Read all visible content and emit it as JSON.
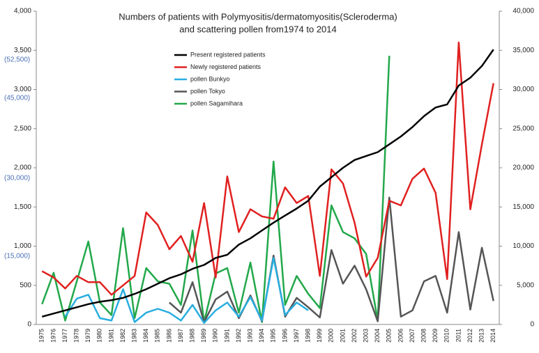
{
  "chart_data": {
    "type": "line",
    "title": [
      "Numbers of patients with Polymyositis/dermatomyositis(Scleroderma)",
      "and scattering pollen from1974 to 2014"
    ],
    "annotations": [
      "(52,500)",
      "(45,000)",
      "(30,000)",
      "(15,000)"
    ],
    "categories": [
      "1975",
      "1976",
      "1977",
      "1978",
      "1979",
      "1980",
      "1981",
      "1982",
      "1983",
      "1984",
      "1985",
      "1986",
      "1987",
      "1988",
      "1989",
      "1990",
      "1991",
      "1992",
      "1993",
      "1994",
      "1995",
      "1996",
      "1997",
      "1998",
      "1999",
      "2000",
      "2001",
      "2002",
      "2003",
      "2004",
      "2005",
      "2006",
      "2007",
      "2008",
      "2009",
      "2010",
      "2011",
      "2012",
      "2013",
      "2014"
    ],
    "ylim": [
      0,
      4000
    ],
    "yticks": [
      0,
      500,
      {
        "value": 1000,
        "label": "1,000"
      },
      {
        "value": 1500,
        "label": "1,500"
      },
      {
        "value": 2000,
        "label": "2,000"
      },
      {
        "value": 2500,
        "label": "2,500"
      },
      {
        "value": 3000,
        "label": "3,000"
      },
      {
        "value": 3500,
        "label": "3,500"
      },
      {
        "value": 4000,
        "label": "4,000"
      }
    ],
    "y2lim": [
      0,
      40000
    ],
    "y2ticks": [
      0,
      {
        "value": 5000,
        "label": "5,000"
      },
      {
        "value": 10000,
        "label": "10,000"
      },
      {
        "value": 15000,
        "label": "15,000"
      },
      {
        "value": 20000,
        "label": "20,000"
      },
      {
        "value": 25000,
        "label": "25,000"
      },
      {
        "value": 30000,
        "label": "30,000"
      },
      {
        "value": 35000,
        "label": "35,000"
      },
      {
        "value": 40000,
        "label": "40,000"
      }
    ],
    "legend": "upper left",
    "series": [
      {
        "name": "Present registered patients",
        "color": "#000000",
        "values": [
          100,
          140,
          180,
          220,
          260,
          290,
          310,
          340,
          390,
          450,
          520,
          590,
          640,
          710,
          760,
          850,
          890,
          1020,
          1100,
          1200,
          1300,
          1390,
          1480,
          1580,
          1760,
          1880,
          2000,
          2100,
          2150,
          2200,
          2300,
          2400,
          2520,
          2660,
          2770,
          2810,
          3050,
          3150,
          3300,
          3510
        ]
      },
      {
        "name": "Newly registered patients",
        "color": "#e02020",
        "values": [
          680,
          600,
          460,
          620,
          540,
          540,
          380,
          500,
          620,
          1430,
          1270,
          960,
          1130,
          800,
          1550,
          600,
          1890,
          1180,
          1470,
          1380,
          1350,
          1750,
          1550,
          1640,
          620,
          1980,
          1800,
          1300,
          610,
          850,
          1580,
          1520,
          1860,
          1990,
          1680,
          580,
          3600,
          1470,
          2300,
          3080
        ]
      },
      {
        "name": "pollen Bunkyo",
        "color": "#29aee0",
        "axis": "y2",
        "values": [
          null,
          null,
          1000,
          3300,
          3800,
          800,
          500,
          4500,
          300,
          1500,
          2000,
          1500,
          500,
          2500,
          200,
          1800,
          2800,
          1000,
          3500,
          500,
          8500,
          1200,
          2800,
          1800,
          null,
          null,
          null,
          null,
          null,
          null,
          null,
          null,
          null,
          null,
          null,
          null,
          null,
          null,
          null,
          null
        ]
      },
      {
        "name": "pollen Tokyo",
        "color": "#555555",
        "axis": "y2",
        "values": [
          null,
          null,
          null,
          null,
          null,
          null,
          null,
          null,
          null,
          null,
          null,
          2800,
          1500,
          5400,
          300,
          3200,
          4200,
          800,
          3700,
          400,
          8800,
          1000,
          3400,
          2200,
          900,
          9500,
          5200,
          7500,
          4500,
          400,
          16200,
          1000,
          1800,
          5500,
          6200,
          1500,
          11800,
          1900,
          9800,
          3000
        ]
      },
      {
        "name": "pollen Sagamihara",
        "color": "#22a84a",
        "axis": "y2",
        "values": [
          2600,
          6600,
          500,
          5500,
          10600,
          2800,
          1200,
          12300,
          800,
          7200,
          5500,
          5200,
          2500,
          12000,
          300,
          6500,
          7200,
          1500,
          7900,
          300,
          20800,
          2500,
          6200,
          3900,
          2100,
          15200,
          11800,
          11000,
          9000,
          500,
          34300,
          null,
          null,
          null,
          null,
          null,
          null,
          null,
          null,
          null
        ]
      }
    ]
  }
}
